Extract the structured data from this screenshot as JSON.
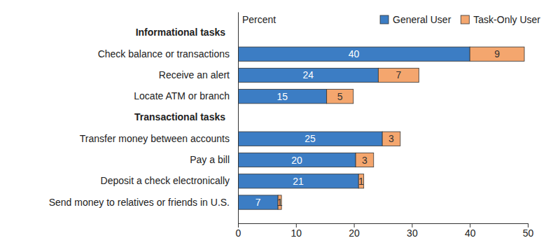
{
  "chart_data": {
    "type": "bar",
    "orientation": "horizontal",
    "stacked": true,
    "data_labels": true,
    "legend": "top-right",
    "grid": false,
    "xlabel": "Percent",
    "categories": [
      "Informational tasks",
      "Check balance or transactions",
      "Receive an alert",
      "Locate ATM or branch",
      "Transactional tasks",
      "Transfer money between accounts",
      "Pay a bill",
      "Deposit a check electronically",
      "Send money to relatives or friends in U.S."
    ],
    "series": [
      {
        "name": "General User",
        "color": "#3c7dc4",
        "values": [
          null,
          40,
          24.2,
          15.3,
          null,
          24.9,
          20.3,
          20.8,
          6.9
        ],
        "value_labels": [
          null,
          "40",
          "24",
          "15",
          null,
          "25",
          "20",
          "21",
          "7"
        ]
      },
      {
        "name": "Task-Only User",
        "color": "#f4a66e",
        "values": [
          null,
          9.4,
          7,
          4.6,
          null,
          3.1,
          3.1,
          0.9,
          0.6
        ],
        "value_labels": [
          null,
          "9",
          "7",
          "5",
          null,
          "3",
          "3",
          "1",
          "1"
        ]
      }
    ],
    "xlim": [
      0,
      50
    ],
    "xticks": [
      0,
      10,
      20,
      30,
      40,
      50
    ]
  }
}
